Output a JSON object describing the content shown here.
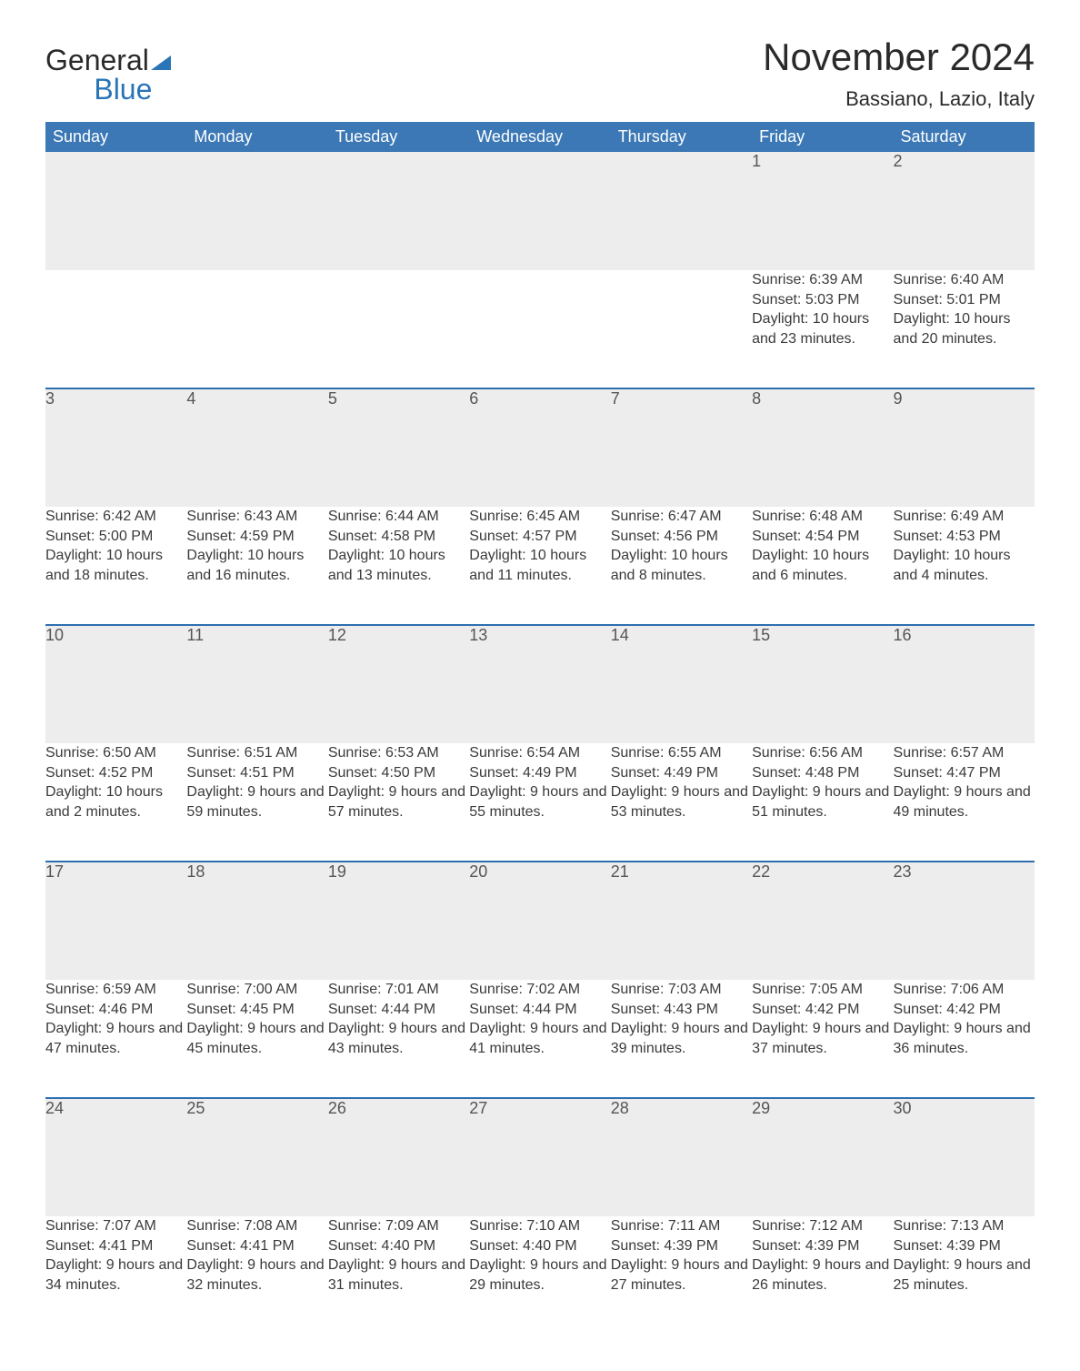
{
  "brand": {
    "part1": "General",
    "part2": "Blue"
  },
  "title": "November 2024",
  "location": "Bassiano, Lazio, Italy",
  "colors": {
    "header_bg": "#3b78b5",
    "header_text": "#ffffff",
    "daynum_bg": "#ededed",
    "divider": "#2e6fb0",
    "body_text": "#3a3a3a",
    "page_bg": "#ffffff",
    "brand_blue": "#2a74b8"
  },
  "columns": [
    "Sunday",
    "Monday",
    "Tuesday",
    "Wednesday",
    "Thursday",
    "Friday",
    "Saturday"
  ],
  "weeks": [
    [
      null,
      null,
      null,
      null,
      null,
      {
        "n": "1",
        "sunrise": "6:39 AM",
        "sunset": "5:03 PM",
        "daylight": "10 hours and 23 minutes."
      },
      {
        "n": "2",
        "sunrise": "6:40 AM",
        "sunset": "5:01 PM",
        "daylight": "10 hours and 20 minutes."
      }
    ],
    [
      {
        "n": "3",
        "sunrise": "6:42 AM",
        "sunset": "5:00 PM",
        "daylight": "10 hours and 18 minutes."
      },
      {
        "n": "4",
        "sunrise": "6:43 AM",
        "sunset": "4:59 PM",
        "daylight": "10 hours and 16 minutes."
      },
      {
        "n": "5",
        "sunrise": "6:44 AM",
        "sunset": "4:58 PM",
        "daylight": "10 hours and 13 minutes."
      },
      {
        "n": "6",
        "sunrise": "6:45 AM",
        "sunset": "4:57 PM",
        "daylight": "10 hours and 11 minutes."
      },
      {
        "n": "7",
        "sunrise": "6:47 AM",
        "sunset": "4:56 PM",
        "daylight": "10 hours and 8 minutes."
      },
      {
        "n": "8",
        "sunrise": "6:48 AM",
        "sunset": "4:54 PM",
        "daylight": "10 hours and 6 minutes."
      },
      {
        "n": "9",
        "sunrise": "6:49 AM",
        "sunset": "4:53 PM",
        "daylight": "10 hours and 4 minutes."
      }
    ],
    [
      {
        "n": "10",
        "sunrise": "6:50 AM",
        "sunset": "4:52 PM",
        "daylight": "10 hours and 2 minutes."
      },
      {
        "n": "11",
        "sunrise": "6:51 AM",
        "sunset": "4:51 PM",
        "daylight": "9 hours and 59 minutes."
      },
      {
        "n": "12",
        "sunrise": "6:53 AM",
        "sunset": "4:50 PM",
        "daylight": "9 hours and 57 minutes."
      },
      {
        "n": "13",
        "sunrise": "6:54 AM",
        "sunset": "4:49 PM",
        "daylight": "9 hours and 55 minutes."
      },
      {
        "n": "14",
        "sunrise": "6:55 AM",
        "sunset": "4:49 PM",
        "daylight": "9 hours and 53 minutes."
      },
      {
        "n": "15",
        "sunrise": "6:56 AM",
        "sunset": "4:48 PM",
        "daylight": "9 hours and 51 minutes."
      },
      {
        "n": "16",
        "sunrise": "6:57 AM",
        "sunset": "4:47 PM",
        "daylight": "9 hours and 49 minutes."
      }
    ],
    [
      {
        "n": "17",
        "sunrise": "6:59 AM",
        "sunset": "4:46 PM",
        "daylight": "9 hours and 47 minutes."
      },
      {
        "n": "18",
        "sunrise": "7:00 AM",
        "sunset": "4:45 PM",
        "daylight": "9 hours and 45 minutes."
      },
      {
        "n": "19",
        "sunrise": "7:01 AM",
        "sunset": "4:44 PM",
        "daylight": "9 hours and 43 minutes."
      },
      {
        "n": "20",
        "sunrise": "7:02 AM",
        "sunset": "4:44 PM",
        "daylight": "9 hours and 41 minutes."
      },
      {
        "n": "21",
        "sunrise": "7:03 AM",
        "sunset": "4:43 PM",
        "daylight": "9 hours and 39 minutes."
      },
      {
        "n": "22",
        "sunrise": "7:05 AM",
        "sunset": "4:42 PM",
        "daylight": "9 hours and 37 minutes."
      },
      {
        "n": "23",
        "sunrise": "7:06 AM",
        "sunset": "4:42 PM",
        "daylight": "9 hours and 36 minutes."
      }
    ],
    [
      {
        "n": "24",
        "sunrise": "7:07 AM",
        "sunset": "4:41 PM",
        "daylight": "9 hours and 34 minutes."
      },
      {
        "n": "25",
        "sunrise": "7:08 AM",
        "sunset": "4:41 PM",
        "daylight": "9 hours and 32 minutes."
      },
      {
        "n": "26",
        "sunrise": "7:09 AM",
        "sunset": "4:40 PM",
        "daylight": "9 hours and 31 minutes."
      },
      {
        "n": "27",
        "sunrise": "7:10 AM",
        "sunset": "4:40 PM",
        "daylight": "9 hours and 29 minutes."
      },
      {
        "n": "28",
        "sunrise": "7:11 AM",
        "sunset": "4:39 PM",
        "daylight": "9 hours and 27 minutes."
      },
      {
        "n": "29",
        "sunrise": "7:12 AM",
        "sunset": "4:39 PM",
        "daylight": "9 hours and 26 minutes."
      },
      {
        "n": "30",
        "sunrise": "7:13 AM",
        "sunset": "4:39 PM",
        "daylight": "9 hours and 25 minutes."
      }
    ]
  ],
  "labels": {
    "sunrise": "Sunrise: ",
    "sunset": "Sunset: ",
    "daylight": "Daylight: "
  }
}
